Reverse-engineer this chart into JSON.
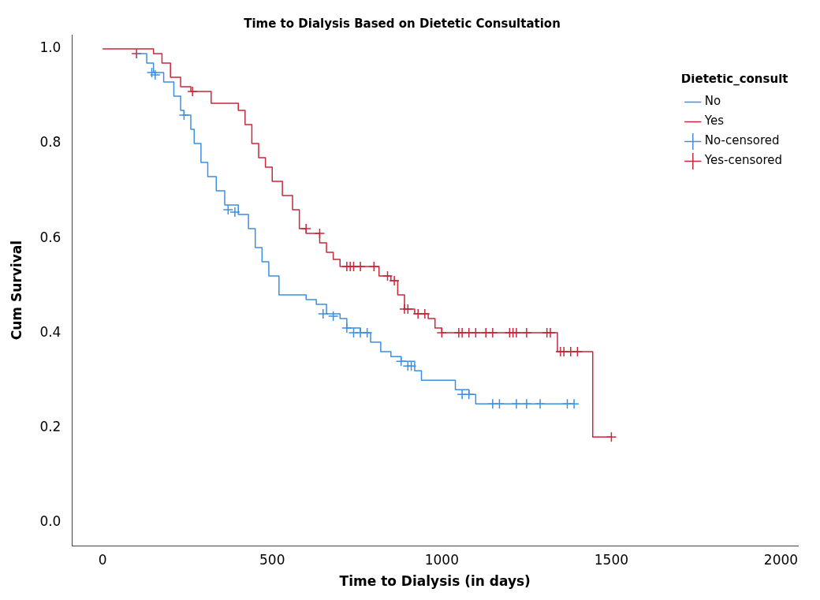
{
  "chart_data": {
    "type": "step",
    "title": "Time to Dialysis Based on Dietetic Consultation",
    "xlabel": "Time to Dialysis (in days)",
    "ylabel": "Cum Survival",
    "legend_title": "Dietetic_consult",
    "legend": "top right",
    "grid": false,
    "xlim": [
      -90,
      2050
    ],
    "xticks": [
      0,
      500,
      1000,
      1500,
      2000
    ],
    "ylim": [
      -0.05,
      1.03
    ],
    "yticks": [
      {
        "value": 0,
        "label": "0.0"
      },
      0.2,
      0.4,
      0.6,
      0.8,
      {
        "value": 1,
        "label": "1.0"
      }
    ],
    "series": [
      {
        "name": "No",
        "type": "step",
        "color": "#3d8fe0",
        "x": [
          100,
          130,
          150,
          180,
          210,
          230,
          240,
          260,
          270,
          290,
          310,
          335,
          360,
          400,
          430,
          450,
          470,
          490,
          520,
          600,
          630,
          660,
          700,
          720,
          760,
          790,
          820,
          850,
          880,
          920,
          940,
          1040,
          1080,
          1100,
          1390
        ],
        "values": [
          0.99,
          0.97,
          0.95,
          0.93,
          0.9,
          0.87,
          0.86,
          0.83,
          0.8,
          0.76,
          0.73,
          0.7,
          0.67,
          0.65,
          0.62,
          0.58,
          0.55,
          0.52,
          0.48,
          0.47,
          0.46,
          0.44,
          0.43,
          0.41,
          0.4,
          0.38,
          0.36,
          0.35,
          0.34,
          0.32,
          0.3,
          0.28,
          0.27,
          0.25,
          0.25
        ]
      },
      {
        "name": "Yes",
        "type": "step",
        "color": "#c8283a",
        "x": [
          0,
          150,
          175,
          200,
          230,
          260,
          320,
          400,
          420,
          440,
          460,
          480,
          500,
          530,
          560,
          580,
          600,
          640,
          660,
          680,
          700,
          815,
          850,
          870,
          890,
          920,
          960,
          980,
          1000,
          1341,
          1445,
          1500
        ],
        "values": [
          1.0,
          0.99,
          0.97,
          0.94,
          0.92,
          0.91,
          0.885,
          0.87,
          0.84,
          0.8,
          0.77,
          0.75,
          0.72,
          0.69,
          0.66,
          0.62,
          0.61,
          0.59,
          0.57,
          0.555,
          0.54,
          0.52,
          0.51,
          0.48,
          0.45,
          0.44,
          0.43,
          0.41,
          0.4,
          0.36,
          0.18,
          0.18
        ]
      },
      {
        "name": "No-censored",
        "type": "scatter",
        "marker": "cross",
        "color": "#3d8fe0",
        "x": [
          145,
          155,
          240,
          370,
          390,
          650,
          680,
          720,
          740,
          760,
          780,
          880,
          900,
          910,
          1060,
          1080,
          1150,
          1170,
          1220,
          1250,
          1290,
          1370,
          1390
        ],
        "values": [
          0.95,
          0.945,
          0.86,
          0.66,
          0.655,
          0.44,
          0.435,
          0.41,
          0.4,
          0.4,
          0.4,
          0.34,
          0.33,
          0.33,
          0.27,
          0.27,
          0.25,
          0.25,
          0.25,
          0.25,
          0.25,
          0.25,
          0.25
        ]
      },
      {
        "name": "Yes-censored",
        "type": "scatter",
        "marker": "cross",
        "color": "#c8283a",
        "x": [
          100,
          265,
          600,
          640,
          720,
          730,
          740,
          760,
          800,
          840,
          860,
          890,
          900,
          930,
          950,
          1000,
          1050,
          1060,
          1080,
          1100,
          1130,
          1150,
          1200,
          1210,
          1220,
          1250,
          1310,
          1320,
          1350,
          1360,
          1380,
          1400,
          1500
        ],
        "values": [
          0.99,
          0.91,
          0.62,
          0.61,
          0.54,
          0.54,
          0.54,
          0.54,
          0.54,
          0.52,
          0.51,
          0.45,
          0.45,
          0.44,
          0.44,
          0.4,
          0.4,
          0.4,
          0.4,
          0.4,
          0.4,
          0.4,
          0.4,
          0.4,
          0.4,
          0.4,
          0.4,
          0.4,
          0.36,
          0.36,
          0.36,
          0.36,
          0.18
        ]
      }
    ]
  }
}
